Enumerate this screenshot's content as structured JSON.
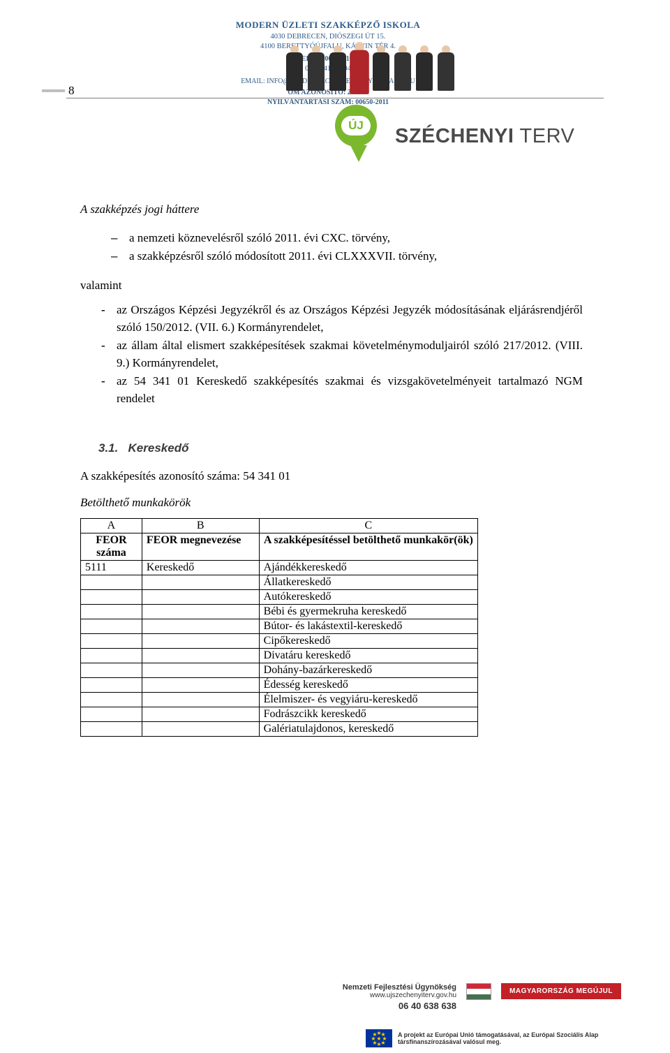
{
  "page_number": "8",
  "header": {
    "school_name": "MODERN ÜZLETI SZAKKÉPZŐ ISKOLA",
    "address_line1": "4030 DEBRECEN, DIÓSZEGI ÚT 15.",
    "address_line2": "4100 BERETTYÓÚJFALU, KÁLVIN TÉR 4.",
    "phone_label": "TELEFON: 06 70/416 4674",
    "phone2": "06 70/416 4694",
    "email_line": "EMAIL: INFO@OKJDEBRECEN-BERETTYOUJFALU.HU",
    "om_line": "OM AZONOSÍTÓ: 201589",
    "reg_line": "NYILVÁNTARTÁSI SZÁM: 00650-2011"
  },
  "szechenyi": {
    "badge_text": "ÚJ",
    "label": "SZÉCHENYI TERV",
    "label_bold": "SZÉCHENYI",
    "label_light": " TERV"
  },
  "section_title": "A szakképzés jogi háttere",
  "dash_items": [
    "a nemzeti köznevelésről szóló 2011. évi CXC. törvény,",
    "a szakképzésről szóló módosított 2011. évi CLXXXVII. törvény,"
  ],
  "valamint": "valamint",
  "bullet_items": [
    "az Országos Képzési Jegyzékről és az Országos Képzési Jegyzék módosításának eljárásrendjéről szóló 150/2012. (VII. 6.) Kormányrendelet,",
    "az állam által elismert szakképesítések szakmai követelménymoduljairól szóló 217/2012. (VIII. 9.) Kormányrendelet,",
    "az 54 341 01 Kereskedő szakképesítés szakmai és vizsgakövetelményeit tartalmazó NGM rendelet"
  ],
  "subsection": {
    "number": "3.1.",
    "title": "Kereskedő",
    "id_line": "A szakképesítés azonosító száma: 54 341 01",
    "table_title": "Betölthető munkakörök"
  },
  "table": {
    "head_letters": [
      "A",
      "B",
      "C"
    ],
    "head_labels_a": "FEOR száma",
    "head_labels_b": "FEOR megnevezése",
    "head_labels_c": "A szakképesítéssel betölthető munkakör(ök)",
    "first_row": {
      "a": "5111",
      "b": "Kereskedő",
      "c": "Ajándékkereskedő"
    },
    "c_rows": [
      "Állatkereskedő",
      "Autókereskedő",
      "Bébi és gyermekruha kereskedő",
      "Bútor- és lakástextil-kereskedő",
      "Cipőkereskedő",
      "Divatáru kereskedő",
      "Dohány-bazárkereskedő",
      "Édesség kereskedő",
      "Élelmiszer- és vegyiáru-kereskedő",
      "Fodrászcikk kereskedő",
      "Galériatulajdonos, kereskedő"
    ]
  },
  "footer": {
    "agency_title": "Nemzeti Fejlesztési Ügynökség",
    "agency_url": "www.ujszechenyiterv.gov.hu",
    "agency_phone": "06 40 638 638",
    "megujul": "MAGYARORSZÁG MEGÚJUL",
    "sub_text": "A projekt az Európai Unió támogatásával, az Európai Szociális Alap társfinanszírozásával valósul meg."
  }
}
